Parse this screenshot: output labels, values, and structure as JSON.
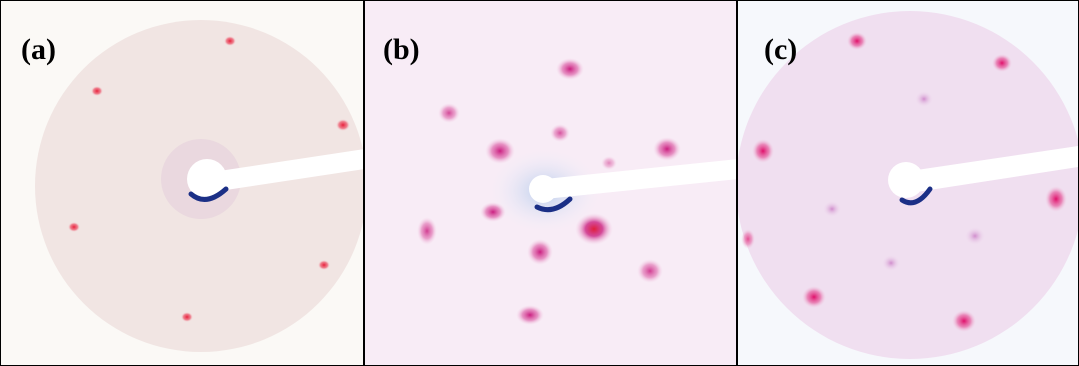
{
  "figure": {
    "panels": [
      {
        "id": "a",
        "label": "(a)",
        "spot_color": "#e8203c",
        "screen_color": "#f1e4e2"
      },
      {
        "id": "b",
        "label": "(b)",
        "spot_color": "#c8147a",
        "screen_color": "#f7eaf5"
      },
      {
        "id": "c",
        "label": "(c)",
        "spot_color": "#e0106a",
        "screen_color": "#efdcee"
      }
    ],
    "shadow_color": "#1b2f86"
  }
}
